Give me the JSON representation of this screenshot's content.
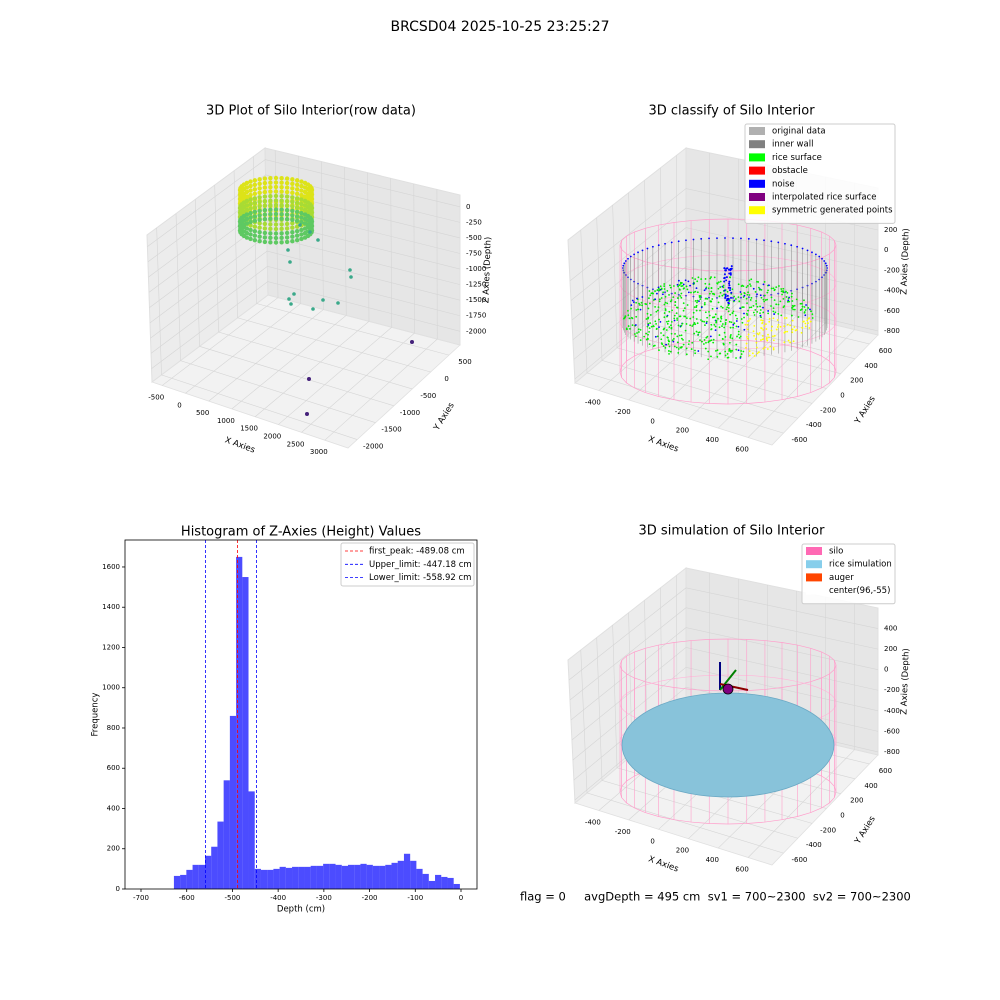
{
  "title": "BRCSD04 2025-10-25 23:25:27",
  "chart_data": [
    {
      "type": "scatter3d",
      "title": "3D Plot of Silo Interior(row data)",
      "xlabel": "X Axies",
      "ylabel": "Y Axies",
      "zlabel": "Z Axies (Depth)",
      "xlim": [
        -720,
        3500
      ],
      "xticks": [
        -500,
        0,
        500,
        1000,
        1500,
        2000,
        2500,
        3000
      ],
      "ylim": [
        -2250,
        800
      ],
      "yticks": [
        -2000,
        -1500,
        -1000,
        -500,
        0,
        500
      ],
      "zlim": [
        -2220,
        190
      ],
      "zticks": [
        -2000,
        -1750,
        -1500,
        -1250,
        -1000,
        -750,
        -500,
        -250,
        0
      ]
    },
    {
      "type": "scatter3d",
      "title": "3D classify of Silo Interior",
      "xlabel": "X Axies",
      "ylabel": "Y Axies",
      "zlabel": "Z Axies (Depth)",
      "xlim": [
        -560,
        760
      ],
      "xticks": [
        -400,
        -200,
        0,
        200,
        400,
        600
      ],
      "ylim": [
        -760,
        720
      ],
      "yticks": [
        -600,
        -400,
        -200,
        0,
        200,
        400,
        600
      ],
      "zlim": [
        -840,
        616
      ],
      "zticks": [
        -800,
        -600,
        -400,
        -200,
        0,
        200
      ],
      "legend": [
        {
          "name": "original data",
          "color": "#b0b0b0"
        },
        {
          "name": "inner wall",
          "color": "#808080"
        },
        {
          "name": "rice surface",
          "color": "#00ff00"
        },
        {
          "name": "obstacle",
          "color": "#ff0000"
        },
        {
          "name": "noise",
          "color": "#0000ff"
        },
        {
          "name": "interpolated rice surface",
          "color": "#800080"
        },
        {
          "name": "symmetric generated points",
          "color": "#ffff00"
        }
      ]
    },
    {
      "type": "histogram",
      "title": "Histogram of Z-Axies (Height) Values",
      "xlabel": "Depth (cm)",
      "ylabel": "Frequency",
      "color": "#0000ff",
      "bins": [
        -628,
        -614.4,
        -600.8,
        -587.2,
        -573.6,
        -560,
        -546.4,
        -532.8,
        -519.2,
        -505.6,
        -492,
        -478.4,
        -464.8,
        -451.2,
        -437.6,
        -424,
        -410.4,
        -396.8,
        -383.2,
        -369.6,
        -356,
        -342.4,
        -328.8,
        -315.2,
        -301.6,
        -288,
        -274.4,
        -260.8,
        -247.2,
        -233.6,
        -220,
        -206.4,
        -192.8,
        -179.2,
        -165.6,
        -152,
        -138.4,
        -124.8,
        -111.2,
        -97.6,
        -84,
        -70.4,
        -56.8,
        -43.2,
        -29.6,
        -16,
        -2.4
      ],
      "counts": [
        65,
        70,
        95,
        120,
        120,
        165,
        210,
        335,
        540,
        860,
        1650,
        1550,
        485,
        100,
        95,
        95,
        100,
        110,
        105,
        110,
        110,
        110,
        115,
        115,
        125,
        125,
        120,
        115,
        120,
        120,
        125,
        120,
        115,
        115,
        120,
        130,
        140,
        175,
        140,
        100,
        75,
        40,
        70,
        60,
        55,
        25
      ],
      "xlim": [
        -735,
        35
      ],
      "xticks": [
        -700,
        -600,
        -500,
        -400,
        -300,
        -200,
        -100,
        0
      ],
      "ylim": [
        0,
        1734
      ],
      "yticks": [
        0,
        200,
        400,
        600,
        800,
        1000,
        1200,
        1400,
        1600
      ],
      "vlines": [
        {
          "label": "first_peak: -489.08 cm",
          "value": -489.08,
          "color": "#ff0000"
        },
        {
          "label": "Upper_limit: -447.18 cm",
          "value": -447.18,
          "color": "#0000ff"
        },
        {
          "label": "Lower_limit: -558.92 cm",
          "value": -558.92,
          "color": "#0000ff"
        }
      ]
    },
    {
      "type": "scatter3d",
      "title": "3D simulation of Silo Interior",
      "xlabel": "X Axies",
      "ylabel": "Y Axies",
      "zlabel": "Z Axies (Depth)",
      "xlim": [
        -560,
        760
      ],
      "xticks": [
        -400,
        -200,
        0,
        200,
        400,
        600
      ],
      "ylim": [
        -760,
        720
      ],
      "yticks": [
        -600,
        -400,
        -200,
        0,
        200,
        400,
        600
      ],
      "zlim": [
        -830,
        600
      ],
      "zticks": [
        -800,
        -600,
        -400,
        -200,
        0,
        200,
        400
      ],
      "legend": [
        {
          "name": "silo",
          "color": "#ff69b4"
        },
        {
          "name": "rice simulation",
          "color": "#87ceeb"
        },
        {
          "name": "auger",
          "color": "#ff4500"
        },
        {
          "name": "center(96,-55)",
          "color": "#ffffff"
        }
      ]
    }
  ],
  "footer": "flag = 0     avgDepth = 495 cm  sv1 = 700~2300  sv2 = 700~2300"
}
